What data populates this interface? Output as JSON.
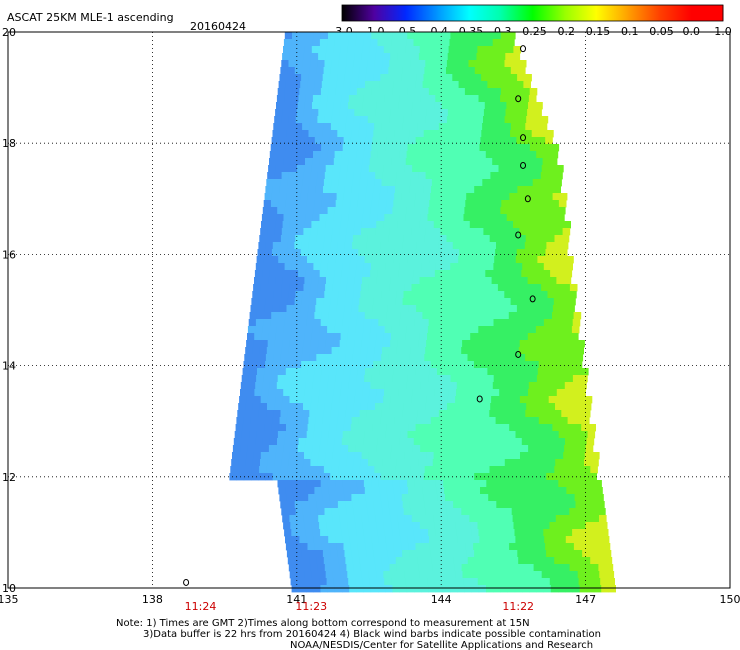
{
  "header": {
    "title": "ASCAT 25KM MLE-1 ascending",
    "date": "20160424"
  },
  "colorbar": {
    "labels": [
      "-3.0",
      "-1.0",
      "-0.5",
      "-0.4",
      "-0.35",
      "-0.3",
      "-0.25",
      "-0.2",
      "-0.15",
      "-0.1",
      "-0.05",
      "0.0",
      "1.0"
    ],
    "colors": [
      "#000000",
      "#5000a0",
      "#0028ff",
      "#0096ff",
      "#00ffff",
      "#00ffaa",
      "#00ff00",
      "#96ff00",
      "#ffff00",
      "#ffa000",
      "#ff4000",
      "#ff0000"
    ]
  },
  "map": {
    "lon_range": [
      135,
      150
    ],
    "lat_range": [
      10,
      20
    ],
    "lon_ticks": [
      "135",
      "138",
      "141",
      "144",
      "147",
      "150"
    ],
    "lat_ticks": [
      "20",
      "18",
      "16",
      "14",
      "12",
      "10"
    ],
    "time_labels": [
      {
        "text": "11:24",
        "lon": 139.0
      },
      {
        "text": "11:23",
        "lon": 141.3
      },
      {
        "text": "11:22",
        "lon": 145.6
      }
    ],
    "island_lonlats": [
      [
        145.7,
        19.7
      ],
      [
        145.6,
        18.8
      ],
      [
        145.7,
        18.1
      ],
      [
        145.7,
        17.6
      ],
      [
        145.8,
        17.0
      ],
      [
        145.6,
        16.35
      ],
      [
        145.9,
        15.2
      ],
      [
        145.6,
        14.2
      ],
      [
        144.8,
        13.4
      ],
      [
        138.7,
        10.1
      ]
    ]
  },
  "notes": [
    "Note: 1) Times are GMT 2)Times along bottom correspond to measurement at 15N",
    "3)Data buffer is 22 hrs from 20160424 4) Black wind barbs indicate possible contamination",
    "NOAA/NESDIS/Center for Satellite Applications and Research"
  ]
}
